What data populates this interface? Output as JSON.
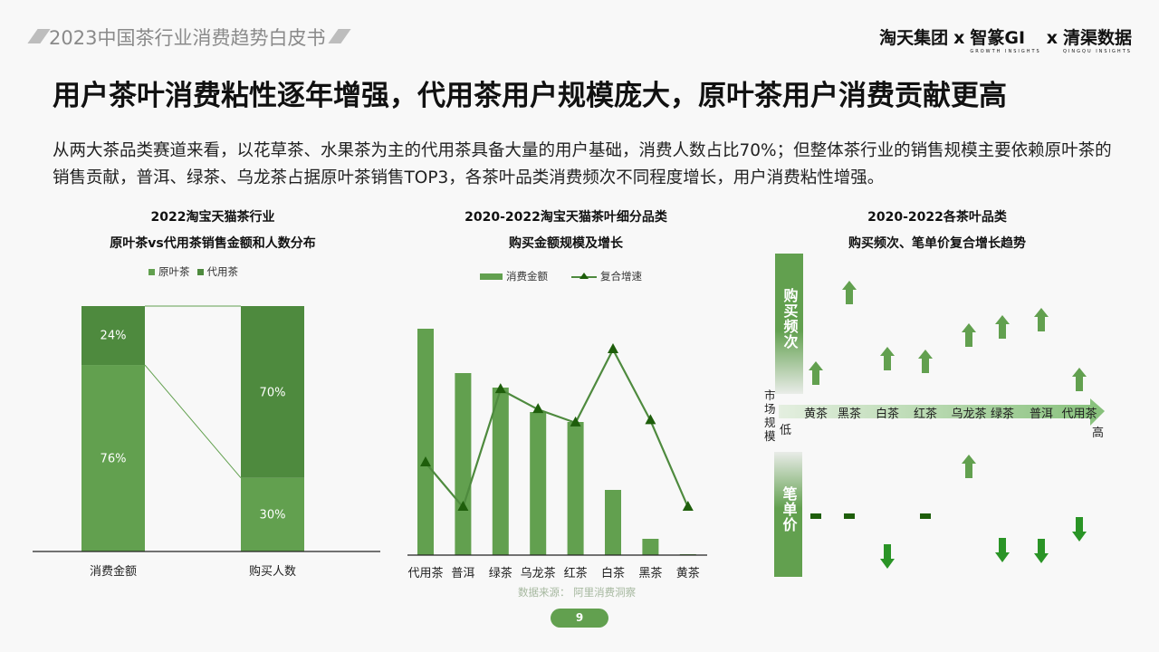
{
  "header": {
    "doc_title": "2023中国茶行业消费趋势白皮书",
    "logos": [
      "淘天集团",
      "智篆GI",
      "清渠数据"
    ],
    "logo_sep": "x",
    "logo_sub": [
      "GROWTH INSIGHTS",
      "QINGQU INSIGHTS"
    ]
  },
  "headline": "用户茶叶消费粘性逐年增强，代用茶用户规模庞大，原叶茶用户消费贡献更高",
  "intro": "从两大茶品类赛道来看，以花草茶、水果茶为主的代用茶具备大量的用户基础，消费人数占比70%；但整体茶行业的销售规模主要依赖原叶茶的销售贡献，普洱、绿茶、乌龙茶占据原叶茶销售TOP3，各茶叶品类消费频次不同程度增长，用户消费粘性增强。",
  "colors": {
    "accent": "#62a04f",
    "dark": "#4e8a3e",
    "marker": "#1e5e0b",
    "down": "#2a9426"
  },
  "chart_data": [
    {
      "type": "bar",
      "stacked": true,
      "title": [
        "2022淘宝天猫茶行业",
        "原叶茶vs代用茶销售金额和人数分布"
      ],
      "legend": [
        "原叶茶",
        "代用茶"
      ],
      "categories": [
        "消费金额",
        "购买人数"
      ],
      "series": [
        {
          "name": "原叶茶",
          "values": [
            76,
            30
          ],
          "labels": [
            "76%",
            "30%"
          ]
        },
        {
          "name": "代用茶",
          "values": [
            24,
            70
          ],
          "labels": [
            "24%",
            "70%"
          ]
        }
      ],
      "ylim": [
        0,
        100
      ]
    },
    {
      "type": "bar+line",
      "title": [
        "2020-2022淘宝天猫茶叶细分品类",
        "购买金额规模及增长"
      ],
      "legend": [
        "消费金额",
        "复合增速"
      ],
      "categories": [
        "代用茶",
        "普洱",
        "绿茶",
        "乌龙茶",
        "红茶",
        "白茶",
        "黑茶",
        "黄茶"
      ],
      "series": [
        {
          "name": "消费金额",
          "type": "bar",
          "values": [
            100,
            80.4,
            74,
            63.2,
            58.8,
            28.8,
            7.2,
            0.4
          ]
        },
        {
          "name": "复合增速",
          "type": "line",
          "values": [
            49,
            29,
            82,
            73,
            67,
            100,
            68,
            29
          ]
        }
      ],
      "source": "数据来源：  阿里消费洞察"
    },
    {
      "type": "table",
      "title": [
        "2020-2022各茶叶品类",
        "购买频次、笔单价复合增长趋势"
      ],
      "axis": {
        "y_top": "购买频次",
        "y_bottom": "笔单价",
        "x": "市场规模",
        "low": "低",
        "high": "高"
      },
      "categories": [
        "黄茶",
        "黑茶",
        "白茶",
        "红茶",
        "乌龙茶",
        "绿茶",
        "普洱",
        "代用茶"
      ],
      "frequency_trend": [
        "up",
        "up",
        "up",
        "up",
        "up",
        "up",
        "up",
        "up"
      ],
      "price_trend": [
        "flat",
        "flat",
        "down",
        "flat",
        "up",
        "down",
        "down",
        "down"
      ]
    }
  ],
  "page_number": "9"
}
